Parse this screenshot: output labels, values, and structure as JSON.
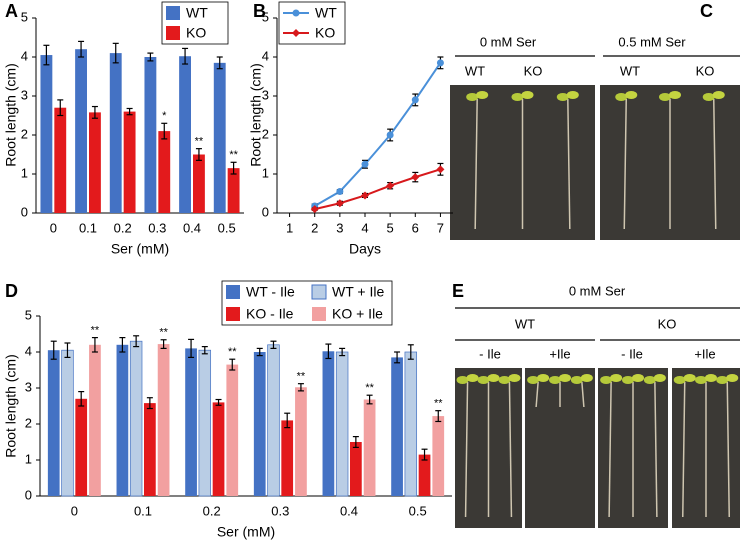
{
  "chart_data": [
    {
      "type": "bar",
      "label": "A",
      "xlabel": "Ser (mM)",
      "ylabel": "Root length (cm)",
      "categories": [
        "0",
        "0.1",
        "0.2",
        "0.3",
        "0.4",
        "0.5"
      ],
      "ylim": [
        0,
        5
      ],
      "yticks": [
        0,
        1,
        2,
        3,
        4,
        5
      ],
      "legend": "upper right",
      "series": [
        {
          "name": "WT",
          "color": "#4472c4",
          "values": [
            4.05,
            4.2,
            4.1,
            4.0,
            4.02,
            3.85
          ],
          "errors": [
            0.25,
            0.2,
            0.25,
            0.1,
            0.2,
            0.15
          ]
        },
        {
          "name": "KO",
          "color": "#e31a1c",
          "values": [
            2.7,
            2.58,
            2.6,
            2.1,
            1.5,
            1.15
          ],
          "errors": [
            0.2,
            0.15,
            0.08,
            0.2,
            0.15,
            0.15
          ],
          "significance": [
            null,
            null,
            null,
            "*",
            "**",
            "**"
          ]
        }
      ]
    },
    {
      "type": "line",
      "label": "B",
      "xlabel": "Days",
      "ylabel": "Root length (cm)",
      "xlim": [
        0.5,
        7.5
      ],
      "xticks": [
        1,
        2,
        3,
        4,
        5,
        6,
        7
      ],
      "ylim": [
        0,
        5
      ],
      "yticks": [
        0,
        1,
        2,
        3,
        4,
        5
      ],
      "legend": "upper left",
      "series": [
        {
          "name": "WT",
          "color": "#4a90d9",
          "marker": "circle",
          "x": [
            2,
            3,
            4,
            5,
            6,
            7
          ],
          "values": [
            0.18,
            0.55,
            1.25,
            2.0,
            2.9,
            3.85
          ],
          "errors": [
            0.05,
            0.05,
            0.1,
            0.15,
            0.15,
            0.15
          ]
        },
        {
          "name": "KO",
          "color": "#d7191c",
          "marker": "diamond",
          "x": [
            2,
            3,
            4,
            5,
            6,
            7
          ],
          "values": [
            0.1,
            0.25,
            0.45,
            0.7,
            0.92,
            1.12
          ],
          "errors": [
            0.03,
            0.05,
            0.05,
            0.08,
            0.12,
            0.15
          ]
        }
      ]
    },
    {
      "type": "bar",
      "label": "D",
      "xlabel": "Ser (mM)",
      "ylabel": "Root length (cm)",
      "categories": [
        "0",
        "0.1",
        "0.2",
        "0.3",
        "0.4",
        "0.5"
      ],
      "ylim": [
        0,
        5
      ],
      "yticks": [
        0,
        1,
        2,
        3,
        4,
        5
      ],
      "legend": "top",
      "series": [
        {
          "name": "WT - Ile",
          "color": "#4472c4",
          "values": [
            4.05,
            4.2,
            4.1,
            4.0,
            4.02,
            3.85
          ],
          "errors": [
            0.25,
            0.2,
            0.25,
            0.1,
            0.2,
            0.15
          ]
        },
        {
          "name": "WT + Ile",
          "color": "#b9cde5",
          "values": [
            4.05,
            4.3,
            4.05,
            4.2,
            4.0,
            4.0
          ],
          "errors": [
            0.2,
            0.15,
            0.1,
            0.1,
            0.1,
            0.2
          ]
        },
        {
          "name": "KO - Ile",
          "color": "#e31a1c",
          "values": [
            2.7,
            2.58,
            2.6,
            2.1,
            1.5,
            1.15
          ],
          "errors": [
            0.2,
            0.15,
            0.08,
            0.2,
            0.15,
            0.15
          ]
        },
        {
          "name": "KO + Ile",
          "color": "#f2a0a0",
          "values": [
            4.2,
            4.22,
            3.65,
            3.02,
            2.68,
            2.22
          ],
          "errors": [
            0.2,
            0.12,
            0.15,
            0.1,
            0.12,
            0.15
          ],
          "significance": [
            "**",
            "**",
            "**",
            "**",
            "**",
            "**"
          ]
        }
      ]
    }
  ],
  "photo_c": {
    "label": "C",
    "conditions": [
      "0 mM Ser",
      "0.5 mM Ser"
    ],
    "genotypes": [
      "WT",
      "KO",
      "WT",
      "KO"
    ]
  },
  "photo_e": {
    "label": "E",
    "condition": "0 mM Ser",
    "genotypes": [
      "WT",
      "KO"
    ],
    "treatments": [
      "- Ile",
      "+Ile",
      "- Ile",
      "+Ile"
    ]
  }
}
